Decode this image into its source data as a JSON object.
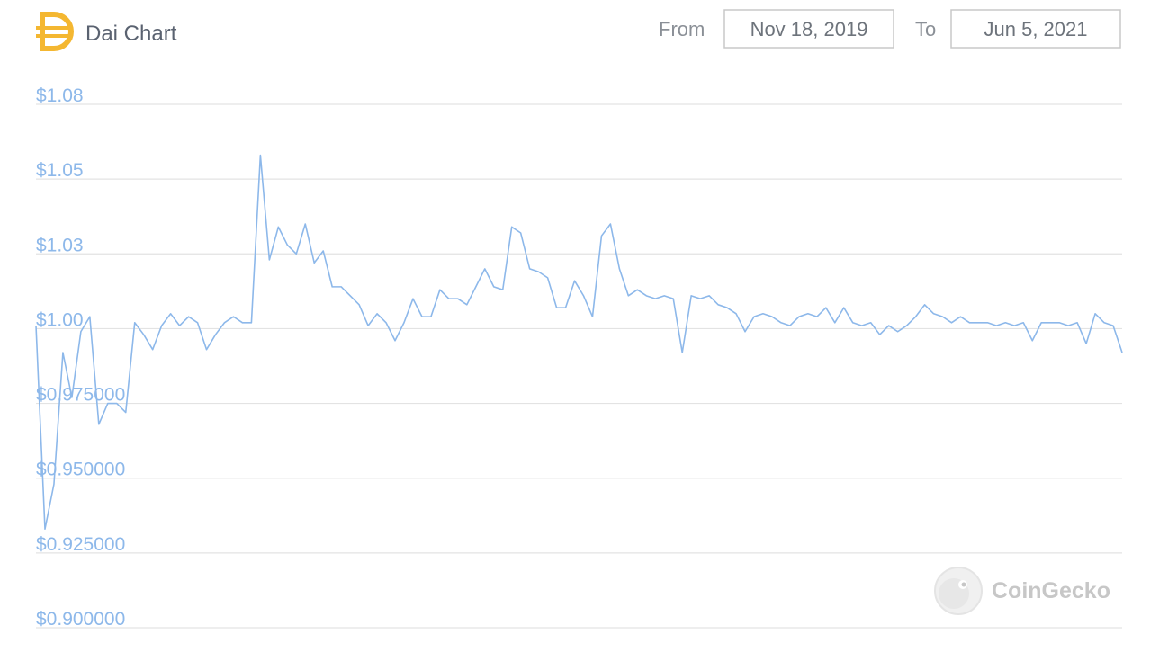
{
  "header": {
    "title": "Dai Chart",
    "from_label": "From",
    "from_date": "Nov 18, 2019",
    "to_label": "To",
    "to_date": "Jun 5, 2021"
  },
  "watermark": "CoinGecko",
  "chart_data": {
    "type": "line",
    "values": [
      1.001,
      0.933,
      0.948,
      0.992,
      0.977,
      0.999,
      1.004,
      0.968,
      0.975,
      0.975,
      0.972,
      1.002,
      0.998,
      0.993,
      1.001,
      1.005,
      1.001,
      1.004,
      1.002,
      0.993,
      0.998,
      1.002,
      1.004,
      1.002,
      1.002,
      1.058,
      1.023,
      1.034,
      1.028,
      1.025,
      1.035,
      1.022,
      1.026,
      1.014,
      1.014,
      1.011,
      1.008,
      1.001,
      1.005,
      1.002,
      0.996,
      1.002,
      1.01,
      1.004,
      1.004,
      1.013,
      1.01,
      1.01,
      1.008,
      1.014,
      1.02,
      1.014,
      1.013,
      1.034,
      1.032,
      1.02,
      1.019,
      1.017,
      1.007,
      1.007,
      1.016,
      1.011,
      1.004,
      1.031,
      1.035,
      1.02,
      1.011,
      1.013,
      1.011,
      1.01,
      1.011,
      1.01,
      0.992,
      1.011,
      1.01,
      1.011,
      1.008,
      1.007,
      1.005,
      0.999,
      1.004,
      1.005,
      1.004,
      1.002,
      1.001,
      1.004,
      1.005,
      1.004,
      1.007,
      1.002,
      1.007,
      1.002,
      1.001,
      1.002,
      0.998,
      1.001,
      0.999,
      1.001,
      1.004,
      1.008,
      1.005,
      1.004,
      1.002,
      1.004,
      1.002,
      1.002,
      1.002,
      1.001,
      1.002,
      1.001,
      1.002,
      0.996,
      1.002,
      1.002,
      1.002,
      1.001,
      1.002,
      0.995,
      1.005,
      1.002,
      1.001,
      0.992
    ],
    "color": "#8db8ea",
    "ylim": [
      0.9,
      1.075
    ],
    "yticks": [
      {
        "value": 1.075,
        "label": "$1.08"
      },
      {
        "value": 1.05,
        "label": "$1.05"
      },
      {
        "value": 1.025,
        "label": "$1.03"
      },
      {
        "value": 1.0,
        "label": "$1.00"
      },
      {
        "value": 0.975,
        "label": "$0.975000"
      },
      {
        "value": 0.95,
        "label": "$0.950000"
      },
      {
        "value": 0.925,
        "label": "$0.925000"
      },
      {
        "value": 0.9,
        "label": "$0.900000"
      }
    ],
    "grid": true
  }
}
